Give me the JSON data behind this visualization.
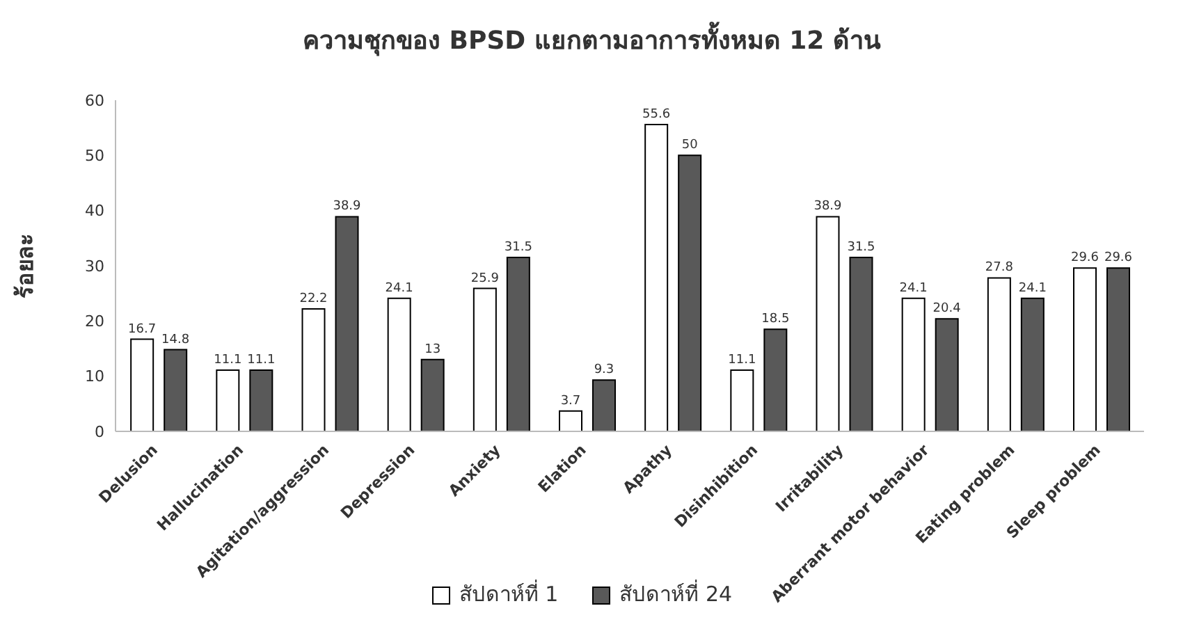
{
  "chart_data": {
    "type": "bar",
    "title": "ความชุกของ BPSD แยกตามอาการทั้งหมด 12 ด้าน",
    "ylabel": "ร้อยละ",
    "categories": [
      "Delusion",
      "Hallucination",
      "Agitation/aggression",
      "Depression",
      "Anxiety",
      "Elation",
      "Apathy",
      "Disinhibition",
      "Irritability",
      "Aberrant motor behavior",
      "Eating problem",
      "Sleep problem"
    ],
    "series": [
      {
        "name": "สัปดาห์ที่ 1",
        "color": "#ffffff",
        "values": [
          16.7,
          11.1,
          22.2,
          24.1,
          25.9,
          3.7,
          55.6,
          11.1,
          38.9,
          24.1,
          27.8,
          29.6
        ]
      },
      {
        "name": "สัปดาห์ที่ 24",
        "color": "#595959",
        "values": [
          14.8,
          11.1,
          38.9,
          13,
          31.5,
          9.3,
          50,
          18.5,
          31.5,
          20.4,
          24.1,
          29.6
        ]
      }
    ],
    "ylim": [
      0,
      60
    ],
    "yticks": [
      0,
      10,
      20,
      30,
      40,
      50,
      60
    ],
    "grid": false,
    "legend": "bottom",
    "data_labels": true
  }
}
